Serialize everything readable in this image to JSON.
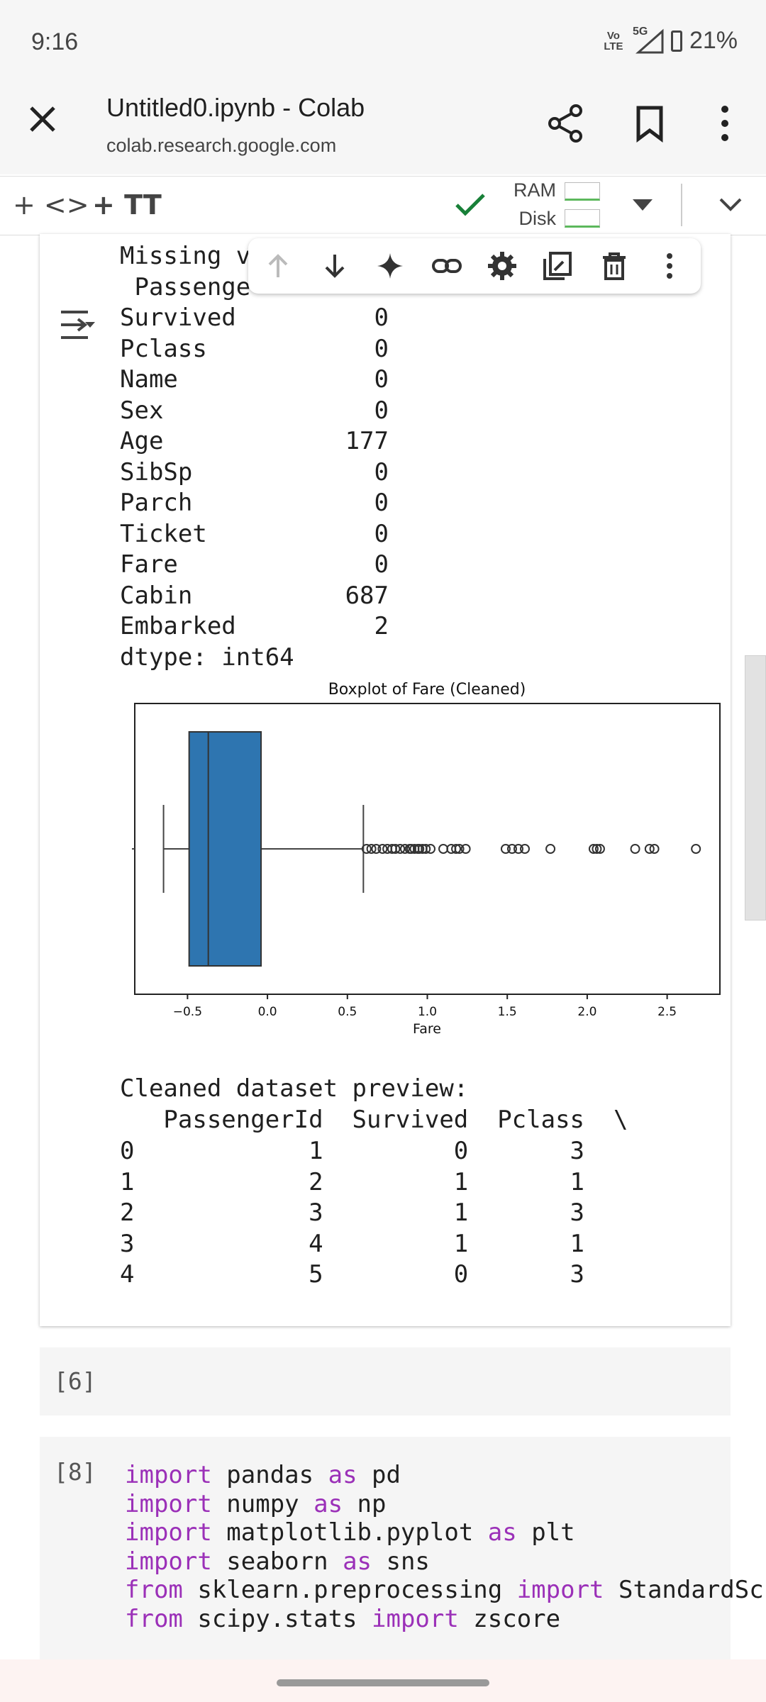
{
  "status_bar": {
    "time": "9:16",
    "network_top": "Vo LTE",
    "network_5g": "5G",
    "battery": "21%"
  },
  "browser": {
    "title": "Untitled0.ipynb - Colab",
    "url": "colab.research.google.com"
  },
  "colab_toolbar": {
    "add_code": "+ <>",
    "add_text": "+ TT",
    "ram_label": "RAM",
    "disk_label": "Disk"
  },
  "output": {
    "partial_header": "Missing v",
    "partial_row": " Passenge",
    "rows": [
      {
        "name": "Survived",
        "value": "0"
      },
      {
        "name": "Pclass",
        "value": "0"
      },
      {
        "name": "Name",
        "value": "0"
      },
      {
        "name": "Sex",
        "value": "0"
      },
      {
        "name": "Age",
        "value": "177"
      },
      {
        "name": "SibSp",
        "value": "0"
      },
      {
        "name": "Parch",
        "value": "0"
      },
      {
        "name": "Ticket",
        "value": "0"
      },
      {
        "name": "Fare",
        "value": "0"
      },
      {
        "name": "Cabin",
        "value": "687"
      },
      {
        "name": "Embarked",
        "value": "2"
      }
    ],
    "dtype": "dtype: int64",
    "preview_title": "Cleaned dataset preview:",
    "preview_header": "   PassengerId  Survived  Pclass  \\",
    "preview_rows": [
      "0            1         0       3",
      "1            2         1       1",
      "2            3         1       3",
      "3            4         1       1",
      "4            5         0       3"
    ]
  },
  "chart_data": {
    "type": "box",
    "title": "Boxplot of Fare (Cleaned)",
    "xlabel": "Fare",
    "xlim": [
      -0.83,
      2.83
    ],
    "xticks": [
      -0.5,
      0.0,
      0.5,
      1.0,
      1.5,
      2.0,
      2.5
    ],
    "xtick_labels": [
      "−0.5",
      "0.0",
      "0.5",
      "1.0",
      "1.5",
      "2.0",
      "2.5"
    ],
    "box": {
      "whisker_low": -0.65,
      "q1": -0.49,
      "median": -0.37,
      "q3": -0.04,
      "whisker_high": 0.6
    },
    "outliers": [
      0.62,
      0.65,
      0.68,
      0.72,
      0.75,
      0.78,
      0.8,
      0.83,
      0.86,
      0.89,
      0.9,
      0.92,
      0.94,
      0.95,
      0.97,
      0.99,
      1.02,
      1.1,
      1.15,
      1.18,
      1.2,
      1.24,
      1.49,
      1.53,
      1.57,
      1.61,
      1.77,
      2.04,
      2.06,
      2.08,
      2.3,
      2.39,
      2.42,
      2.68
    ],
    "color": "#2e75b0"
  },
  "cells": [
    {
      "exec_count": "[6]"
    },
    {
      "exec_count": "[8]"
    }
  ],
  "code_lines": [
    [
      {
        "t": "import",
        "k": 1
      },
      {
        "t": " pandas ",
        "k": 0
      },
      {
        "t": "as",
        "k": 1
      },
      {
        "t": " pd",
        "k": 0
      }
    ],
    [
      {
        "t": "import",
        "k": 1
      },
      {
        "t": " numpy ",
        "k": 0
      },
      {
        "t": "as",
        "k": 1
      },
      {
        "t": " np",
        "k": 0
      }
    ],
    [
      {
        "t": "import",
        "k": 1
      },
      {
        "t": " matplotlib.pyplot ",
        "k": 0
      },
      {
        "t": "as",
        "k": 1
      },
      {
        "t": " plt",
        "k": 0
      }
    ],
    [
      {
        "t": "import",
        "k": 1
      },
      {
        "t": " seaborn ",
        "k": 0
      },
      {
        "t": "as",
        "k": 1
      },
      {
        "t": " sns",
        "k": 0
      }
    ],
    [
      {
        "t": "from",
        "k": 1
      },
      {
        "t": " sklearn.preprocessing ",
        "k": 0
      },
      {
        "t": "import",
        "k": 1
      },
      {
        "t": " StandardSc",
        "k": 0
      }
    ],
    [
      {
        "t": "from",
        "k": 1
      },
      {
        "t": " scipy.stats ",
        "k": 0
      },
      {
        "t": "import",
        "k": 1
      },
      {
        "t": " zscore",
        "k": 0
      }
    ]
  ],
  "icons": [
    "close-icon",
    "share-icon",
    "bookmark-icon",
    "more-vert-icon",
    "check-icon",
    "dropdown-icon",
    "chevron-down-icon",
    "arrow-up-icon",
    "arrow-down-icon",
    "sparkle-icon",
    "link-icon",
    "gear-icon",
    "mirror-cell-icon",
    "delete-icon",
    "output-toggle-icon"
  ]
}
